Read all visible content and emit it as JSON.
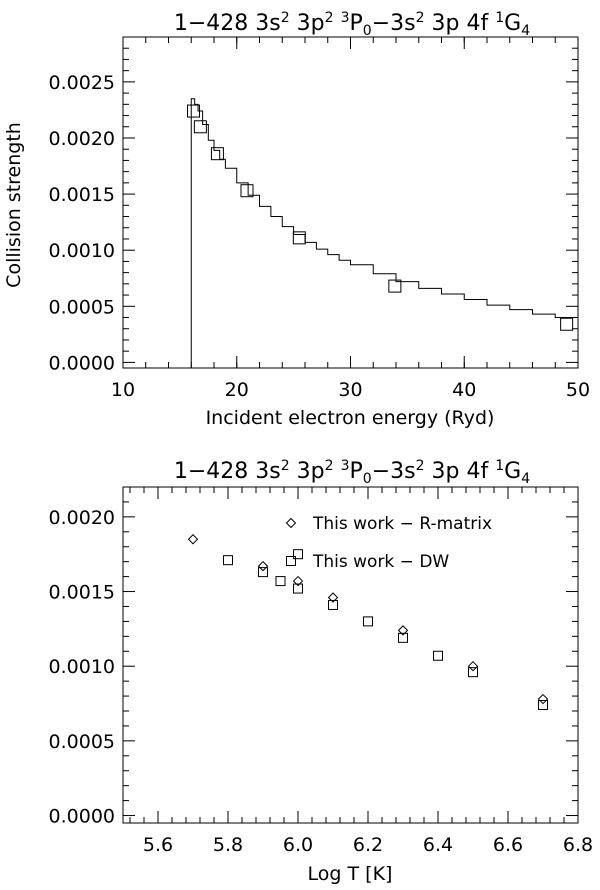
{
  "chart_data": [
    {
      "type": "line",
      "title": {
        "prefix": "1−428 ",
        "parts": [
          {
            "t": "3s"
          },
          {
            "t": "2",
            "sup": true
          },
          {
            "t": " 3p"
          },
          {
            "t": "2",
            "sup": true
          },
          {
            "t": " "
          },
          {
            "t": "3",
            "sup": true
          },
          {
            "t": "P"
          },
          {
            "t": "0",
            "sub": true
          },
          {
            "t": "−3s"
          },
          {
            "t": "2",
            "sup": true
          },
          {
            "t": " 3p 4f "
          },
          {
            "t": "1",
            "sup": true
          },
          {
            "t": "G"
          },
          {
            "t": "4",
            "sub": true
          }
        ]
      },
      "xlabel": "Incident electron energy (Ryd)",
      "ylabel": "Collision strength",
      "xlim": [
        10,
        50
      ],
      "ylim": [
        -5e-05,
        0.0029
      ],
      "xticks": [
        10,
        20,
        30,
        40,
        50
      ],
      "xtick_labels": [
        "10",
        "20",
        "30",
        "40",
        "50"
      ],
      "yticks": [
        0,
        0.0005,
        0.001,
        0.0015,
        0.002,
        0.0025
      ],
      "ytick_labels": [
        "0.0000",
        "0.0005",
        "0.0010",
        "0.0015",
        "0.0020",
        "0.0025"
      ],
      "threshold": 16.0,
      "series": [
        {
          "kind": "step-line",
          "x": [
            16.0,
            16.3,
            16.6,
            17.0,
            17.5,
            18.0,
            18.5,
            19.0,
            20.0,
            21.0,
            22.0,
            23.0,
            24.0,
            25.0,
            26.0,
            27.0,
            28.0,
            29.0,
            30.0,
            32.0,
            34.0,
            36.0,
            38.0,
            40.0,
            42.0,
            44.0,
            46.0,
            48.0,
            50.0
          ],
          "y": [
            0.00235,
            0.0023,
            0.00224,
            0.00212,
            0.00198,
            0.00189,
            0.00181,
            0.00173,
            0.0016,
            0.00149,
            0.00139,
            0.0013,
            0.00121,
            0.00114,
            0.00107,
            0.00101,
            0.00096,
            0.00091,
            0.00087,
            0.00079,
            0.00072,
            0.00066,
            0.00061,
            0.00056,
            0.00051,
            0.00047,
            0.00043,
            0.0004,
            0.00037
          ]
        },
        {
          "kind": "squares",
          "x": [
            16.2,
            16.8,
            18.3,
            20.9,
            25.5,
            33.9,
            49.0
          ],
          "y": [
            0.00224,
            0.0021,
            0.00186,
            0.00153,
            0.00111,
            0.00068,
            0.00034
          ]
        }
      ]
    },
    {
      "type": "scatter",
      "title": {
        "prefix": "1−428 ",
        "parts": [
          {
            "t": "3s"
          },
          {
            "t": "2",
            "sup": true
          },
          {
            "t": " 3p"
          },
          {
            "t": "2",
            "sup": true
          },
          {
            "t": " "
          },
          {
            "t": "3",
            "sup": true
          },
          {
            "t": "P"
          },
          {
            "t": "0",
            "sub": true
          },
          {
            "t": "−3s"
          },
          {
            "t": "2",
            "sup": true
          },
          {
            "t": " 3p 4f "
          },
          {
            "t": "1",
            "sup": true
          },
          {
            "t": "G"
          },
          {
            "t": "4",
            "sub": true
          }
        ]
      },
      "xlabel": "Log T [K]",
      "ylabel": "",
      "xlim": [
        5.5,
        6.8
      ],
      "ylim": [
        -5e-05,
        0.0022
      ],
      "xticks": [
        5.6,
        5.8,
        6.0,
        6.2,
        6.4,
        6.6,
        6.8
      ],
      "xtick_labels": [
        "5.6",
        "5.8",
        "6.0",
        "6.2",
        "6.4",
        "6.6",
        "6.8"
      ],
      "yticks": [
        0,
        0.0005,
        0.001,
        0.0015,
        0.002
      ],
      "ytick_labels": [
        "0.0000",
        "0.0005",
        "0.0010",
        "0.0015",
        "0.0020"
      ],
      "legend_position": "top-right",
      "series": [
        {
          "name": "This work − R-matrix",
          "marker": "diamond",
          "x": [
            5.7,
            5.9,
            6.0,
            6.1,
            6.3,
            6.5,
            6.7
          ],
          "y": [
            0.00185,
            0.00167,
            0.00157,
            0.00146,
            0.00124,
            0.001,
            0.00078
          ]
        },
        {
          "name": "This work − DW",
          "marker": "square",
          "x": [
            5.8,
            5.9,
            5.95,
            6.0,
            6.0,
            6.1,
            6.2,
            6.3,
            6.4,
            6.5,
            6.7
          ],
          "y": [
            0.00171,
            0.00163,
            0.00157,
            0.00175,
            0.00152,
            0.00141,
            0.0013,
            0.00119,
            0.00107,
            0.00096,
            0.00074
          ]
        }
      ]
    }
  ]
}
